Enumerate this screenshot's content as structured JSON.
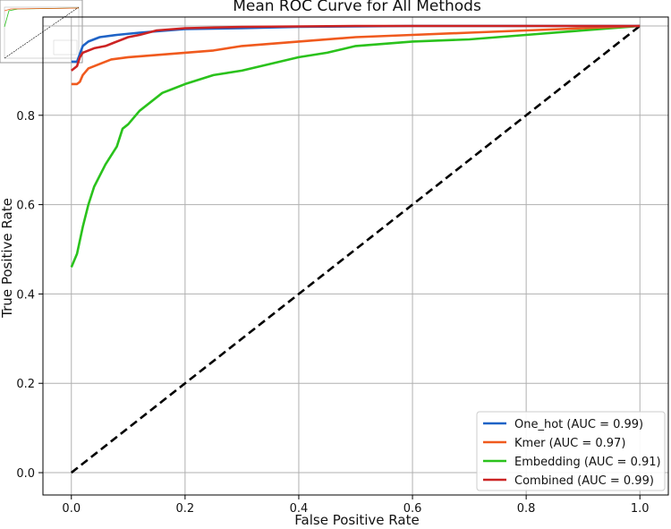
{
  "chart_data": {
    "type": "line",
    "title": "Mean ROC Curve for All Methods",
    "xlabel": "False Positive Rate",
    "ylabel": "True Positive Rate",
    "xlim": [
      -0.05,
      1.05
    ],
    "ylim": [
      -0.05,
      1.02
    ],
    "xticks": [
      "0.0",
      "0.2",
      "0.4",
      "0.6",
      "0.8",
      "1.0"
    ],
    "yticks": [
      "0.0",
      "0.2",
      "0.4",
      "0.6",
      "0.8"
    ],
    "grid": true,
    "legend_position": "lower-right",
    "series": [
      {
        "name": "One_hot (AUC = 0.99)",
        "color": "#1f63c6",
        "x": [
          0,
          0.01,
          0.02,
          0.03,
          0.05,
          0.08,
          0.12,
          0.2,
          0.3,
          0.4,
          0.5,
          0.6,
          0.7,
          0.8,
          0.9,
          1.0
        ],
        "y": [
          0.92,
          0.92,
          0.955,
          0.965,
          0.975,
          0.98,
          0.985,
          0.993,
          0.995,
          0.998,
          0.999,
          1.0,
          1.0,
          1.0,
          1.0,
          1.0
        ]
      },
      {
        "name": "Kmer (AUC = 0.97)",
        "color": "#f05a1e",
        "x": [
          0,
          0.01,
          0.015,
          0.02,
          0.03,
          0.05,
          0.07,
          0.1,
          0.15,
          0.2,
          0.25,
          0.3,
          0.4,
          0.5,
          0.6,
          0.7,
          0.8,
          0.9,
          1.0
        ],
        "y": [
          0.87,
          0.87,
          0.875,
          0.89,
          0.905,
          0.915,
          0.925,
          0.93,
          0.935,
          0.94,
          0.945,
          0.955,
          0.965,
          0.975,
          0.98,
          0.985,
          0.99,
          0.995,
          1.0
        ]
      },
      {
        "name": "Embedding (AUC = 0.91)",
        "color": "#2ac21c",
        "x": [
          0,
          0.01,
          0.02,
          0.03,
          0.04,
          0.06,
          0.08,
          0.09,
          0.1,
          0.12,
          0.14,
          0.16,
          0.18,
          0.2,
          0.25,
          0.3,
          0.35,
          0.4,
          0.45,
          0.5,
          0.55,
          0.6,
          0.7,
          0.8,
          0.9,
          1.0
        ],
        "y": [
          0.46,
          0.49,
          0.55,
          0.6,
          0.64,
          0.69,
          0.73,
          0.77,
          0.78,
          0.81,
          0.83,
          0.85,
          0.86,
          0.87,
          0.89,
          0.9,
          0.915,
          0.93,
          0.94,
          0.955,
          0.96,
          0.965,
          0.97,
          0.98,
          0.99,
          1.0
        ]
      },
      {
        "name": "Combined (AUC = 0.99)",
        "color": "#cc2323",
        "x": [
          0,
          0.01,
          0.015,
          0.02,
          0.04,
          0.06,
          0.08,
          0.1,
          0.12,
          0.15,
          0.2,
          0.3,
          0.4,
          0.5,
          0.6,
          0.7,
          0.8,
          0.9,
          1.0
        ],
        "y": [
          0.9,
          0.91,
          0.93,
          0.94,
          0.95,
          0.955,
          0.965,
          0.975,
          0.98,
          0.99,
          0.995,
          0.998,
          0.999,
          1.0,
          1.0,
          1.0,
          1.0,
          1.0,
          1.0
        ]
      }
    ],
    "reference_line": {
      "x": [
        0,
        1
      ],
      "y": [
        0,
        1
      ],
      "color": "#000000",
      "style": "dashed"
    }
  }
}
